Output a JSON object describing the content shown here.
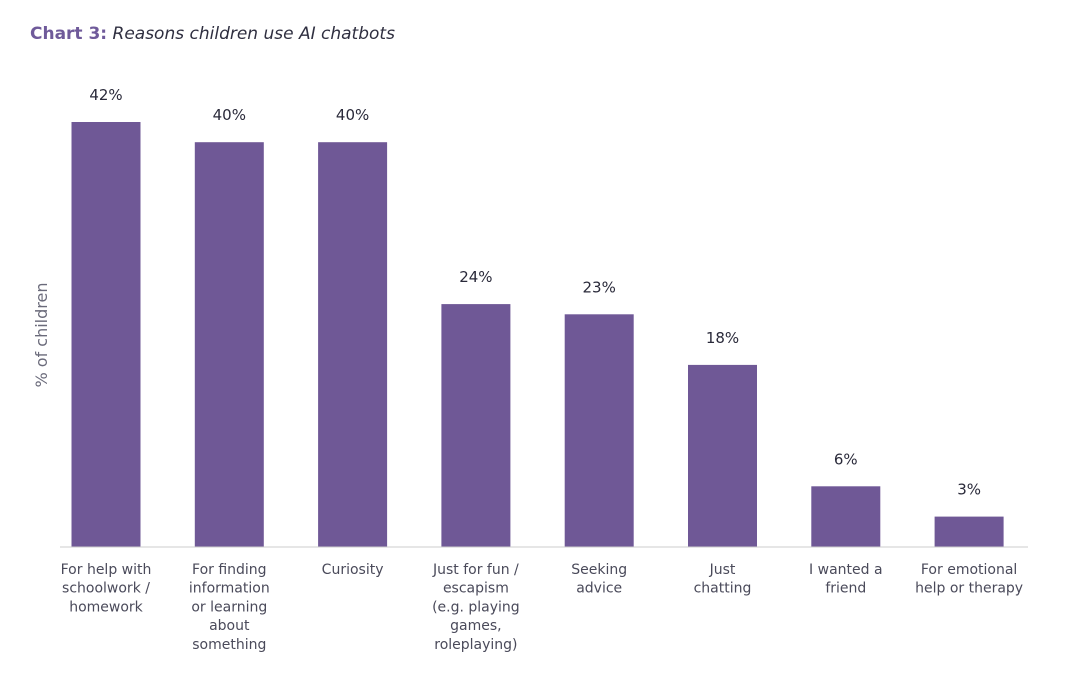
{
  "title": {
    "prefix": "Chart 3:",
    "text": "Reasons children use AI chatbots"
  },
  "colors": {
    "bar": "#6f5896",
    "title_accent": "#6f5a9a",
    "axis_line": "#cccccc"
  },
  "chart_data": {
    "type": "bar",
    "title": "Chart 3: Reasons children use AI chatbots",
    "ylabel": "% of children",
    "xlabel": "",
    "ylim": [
      0,
      42
    ],
    "grid": false,
    "value_suffix": "%",
    "categories": [
      [
        "For help with",
        "schoolwork /",
        "homework"
      ],
      [
        "For finding",
        "information",
        "or learning",
        "about",
        "something"
      ],
      [
        "Curiosity"
      ],
      [
        "Just for fun /",
        "escapism",
        "(e.g. playing",
        "games,",
        "roleplaying)"
      ],
      [
        "Seeking",
        "advice"
      ],
      [
        "Just",
        "chatting"
      ],
      [
        "I wanted a",
        "friend"
      ],
      [
        "For emotional",
        "help or therapy"
      ]
    ],
    "values": [
      42,
      40,
      40,
      24,
      23,
      18,
      6,
      3
    ]
  }
}
